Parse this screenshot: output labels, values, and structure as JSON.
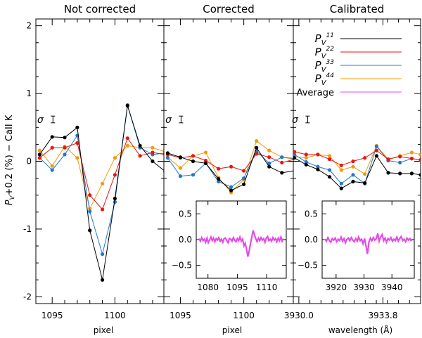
{
  "chart_data": {
    "type": "line",
    "ylabel": "P_V+0.2 (%) − CaII K",
    "ylabel_parts": {
      "p": "P",
      "sub": "V",
      "rest": "+0.2 (%) − CaII K"
    },
    "ylim": [
      -2.1,
      2.1
    ],
    "yticks": [
      -2,
      -1,
      0,
      1,
      2
    ],
    "sigma_label": "σ",
    "colors": {
      "P11": "#000000",
      "P22": "#e8160c",
      "P33": "#1f78d1",
      "P44": "#f59a0a",
      "Average": "#e34be6"
    },
    "legend": [
      {
        "key": "P11",
        "sym": "P",
        "sub": "V",
        "sup": "11"
      },
      {
        "key": "P22",
        "sym": "P",
        "sub": "V",
        "sup": "22"
      },
      {
        "key": "P33",
        "sym": "P",
        "sub": "V",
        "sup": "33"
      },
      {
        "key": "P44",
        "sym": "P",
        "sub": "V",
        "sup": "44"
      },
      {
        "key": "Average",
        "label": "Average"
      }
    ],
    "panels": [
      {
        "title": "Not corrected",
        "xlabel": "pixel",
        "xlim": [
          1093.7,
          1103.9
        ],
        "xticks": [
          1095,
          1100
        ],
        "xticks_minor": [
          1096,
          1097,
          1098,
          1099,
          1101,
          1102,
          1103
        ],
        "x": [
          1094,
          1095,
          1096,
          1097,
          1098,
          1099,
          1100,
          1101,
          1102,
          1103,
          1104
        ],
        "series": {
          "P11": [
            0.1,
            0.36,
            0.35,
            0.5,
            -1.02,
            -1.75,
            -0.55,
            0.82,
            0.23,
            0.0,
            -0.15
          ],
          "P22": [
            0.05,
            0.2,
            0.2,
            0.27,
            -0.5,
            -0.71,
            -0.2,
            0.34,
            0.08,
            0.13,
            0.1
          ],
          "P33": [
            0.05,
            -0.13,
            0.1,
            0.38,
            -0.74,
            -1.37,
            -0.6,
            0.83,
            0.2,
            0.1,
            0.12
          ],
          "P44": [
            0.16,
            -0.07,
            0.22,
            0.05,
            -0.7,
            -0.33,
            0.05,
            0.23,
            0.2,
            0.2,
            0.14
          ]
        },
        "sigma": {
          "x": 1094.5,
          "y": 0.6,
          "half": 0.05
        }
      },
      {
        "title": "Corrected",
        "xlabel": "pixel",
        "xlim": [
          1093.7,
          1103.9
        ],
        "xticks": [
          1095,
          1100
        ],
        "xticks_minor": [
          1096,
          1097,
          1098,
          1099,
          1101,
          1102,
          1103
        ],
        "x": [
          1094,
          1095,
          1096,
          1097,
          1098,
          1099,
          1100,
          1101,
          1102,
          1103,
          1104
        ],
        "series": {
          "P11": [
            0.12,
            0.06,
            0.0,
            -0.03,
            -0.26,
            -0.43,
            -0.34,
            0.2,
            -0.08,
            -0.17,
            -0.14
          ],
          "P22": [
            0.1,
            0.05,
            0.08,
            0.01,
            -0.11,
            -0.08,
            -0.14,
            0.11,
            0.06,
            -0.02,
            0.03
          ],
          "P33": [
            0.05,
            -0.22,
            -0.2,
            -0.03,
            -0.3,
            -0.38,
            -0.25,
            0.15,
            -0.03,
            0.06,
            0.04
          ],
          "P44": [
            0.06,
            -0.1,
            0.08,
            0.13,
            -0.24,
            -0.46,
            -0.27,
            0.3,
            0.16,
            0.06,
            0.03
          ]
        },
        "sigma": {
          "x": 1094.5,
          "y": 0.6,
          "half": 0.05
        },
        "inset": {
          "xlim": [
            1074,
            1120
          ],
          "ylim": [
            -0.75,
            0.75
          ],
          "xticks": [
            1080,
            1095,
            1110
          ],
          "yticks": [
            -0.5,
            0.0,
            0.5
          ],
          "ytick_labels": [
            "−0.5",
            "0.0",
            "0.5"
          ],
          "y": [
            0.02,
            -0.03,
            0.04,
            -0.02,
            0.01,
            -0.05,
            0.03,
            -0.06,
            -0.01,
            0.05,
            -0.02,
            0.03,
            -0.04,
            0.02,
            -0.01,
            0.04,
            -0.03,
            0.01,
            -0.05,
            0.02,
            0.03,
            -0.02,
            -0.06,
            0.02,
            0.01,
            -0.03,
            0.04,
            -0.01,
            -0.04,
            0.02,
            -0.02,
            0.05,
            -0.03,
            0.01,
            -0.12,
            -0.07,
            -0.18,
            -0.33,
            -0.22,
            -0.08,
            0.05,
            0.18,
            0.09,
            0.02,
            -0.04,
            0.03,
            -0.02,
            0.04,
            -0.01,
            0.02,
            -0.05,
            0.03,
            0.06,
            -0.02,
            0.01,
            -0.03,
            0.04,
            -0.01,
            0.02,
            -0.04,
            0.03,
            -0.02,
            0.05,
            -0.03,
            0.02
          ]
        }
      },
      {
        "title": "Calibrated",
        "xlabel": "wavelength (Å)",
        "xlim": [
          3929.75,
          3935.5
        ],
        "xticks": [
          3930.0,
          3933.8
        ],
        "xtick_labels": [
          "3930.0",
          "3933.8"
        ],
        "xticks_minor": [
          3930.5,
          3931.0,
          3931.5,
          3932.0,
          3932.5,
          3933.0,
          3933.5,
          3934.0,
          3934.5,
          3935.0
        ],
        "x": [
          3929.8,
          3930.33,
          3930.86,
          3931.39,
          3931.92,
          3932.45,
          3932.98,
          3933.51,
          3934.04,
          3934.57,
          3935.1,
          3935.5
        ],
        "series": {
          "P11": [
            0.05,
            -0.05,
            -0.12,
            -0.23,
            -0.4,
            -0.3,
            -0.32,
            0.08,
            -0.17,
            -0.18,
            -0.18,
            -0.2
          ],
          "P22": [
            0.14,
            0.1,
            0.1,
            0.03,
            -0.06,
            0.0,
            0.05,
            0.16,
            0.03,
            0.07,
            0.04,
            0.02
          ],
          "P33": [
            0.1,
            -0.01,
            -0.08,
            -0.13,
            -0.33,
            -0.2,
            -0.33,
            0.22,
            0.01,
            -0.02,
            0.04,
            0.02
          ],
          "P44": [
            0.07,
            0.05,
            0.1,
            0.08,
            -0.13,
            -0.08,
            -0.19,
            0.23,
            0.03,
            0.08,
            0.13,
            0.1
          ]
        },
        "sigma": {
          "x": 3930.08,
          "y": 0.6,
          "half": 0.05
        },
        "inset": {
          "xlim": [
            3915,
            3948
          ],
          "ylim": [
            -0.75,
            0.75
          ],
          "xticks": [
            3920,
            3930,
            3940
          ],
          "yticks": [
            -0.5,
            0.0,
            0.5
          ],
          "ytick_labels": [
            "−0.5",
            "0.0",
            "0.5"
          ],
          "y": [
            0.01,
            -0.03,
            0.04,
            -0.02,
            -0.05,
            0.02,
            -0.01,
            0.03,
            -0.04,
            0.01,
            -0.02,
            0.05,
            -0.03,
            0.02,
            -0.06,
            0.01,
            0.03,
            -0.02,
            0.04,
            -0.01,
            -0.04,
            0.02,
            -0.03,
            0.05,
            -0.02,
            0.01,
            -0.08,
            0.02,
            -0.12,
            -0.28,
            -0.05,
            0.03,
            -0.02,
            0.04,
            -0.01,
            0.02,
            0.12,
            -0.03,
            0.05,
            0.1,
            -0.02,
            0.03,
            -0.05,
            0.02,
            -0.01,
            0.04,
            -0.03,
            0.01,
            -0.02,
            0.05,
            -0.03,
            0.02,
            0.06,
            -0.02,
            0.01,
            -0.04,
            0.03,
            -0.01,
            0.02,
            -0.03
          ]
        }
      }
    ]
  }
}
